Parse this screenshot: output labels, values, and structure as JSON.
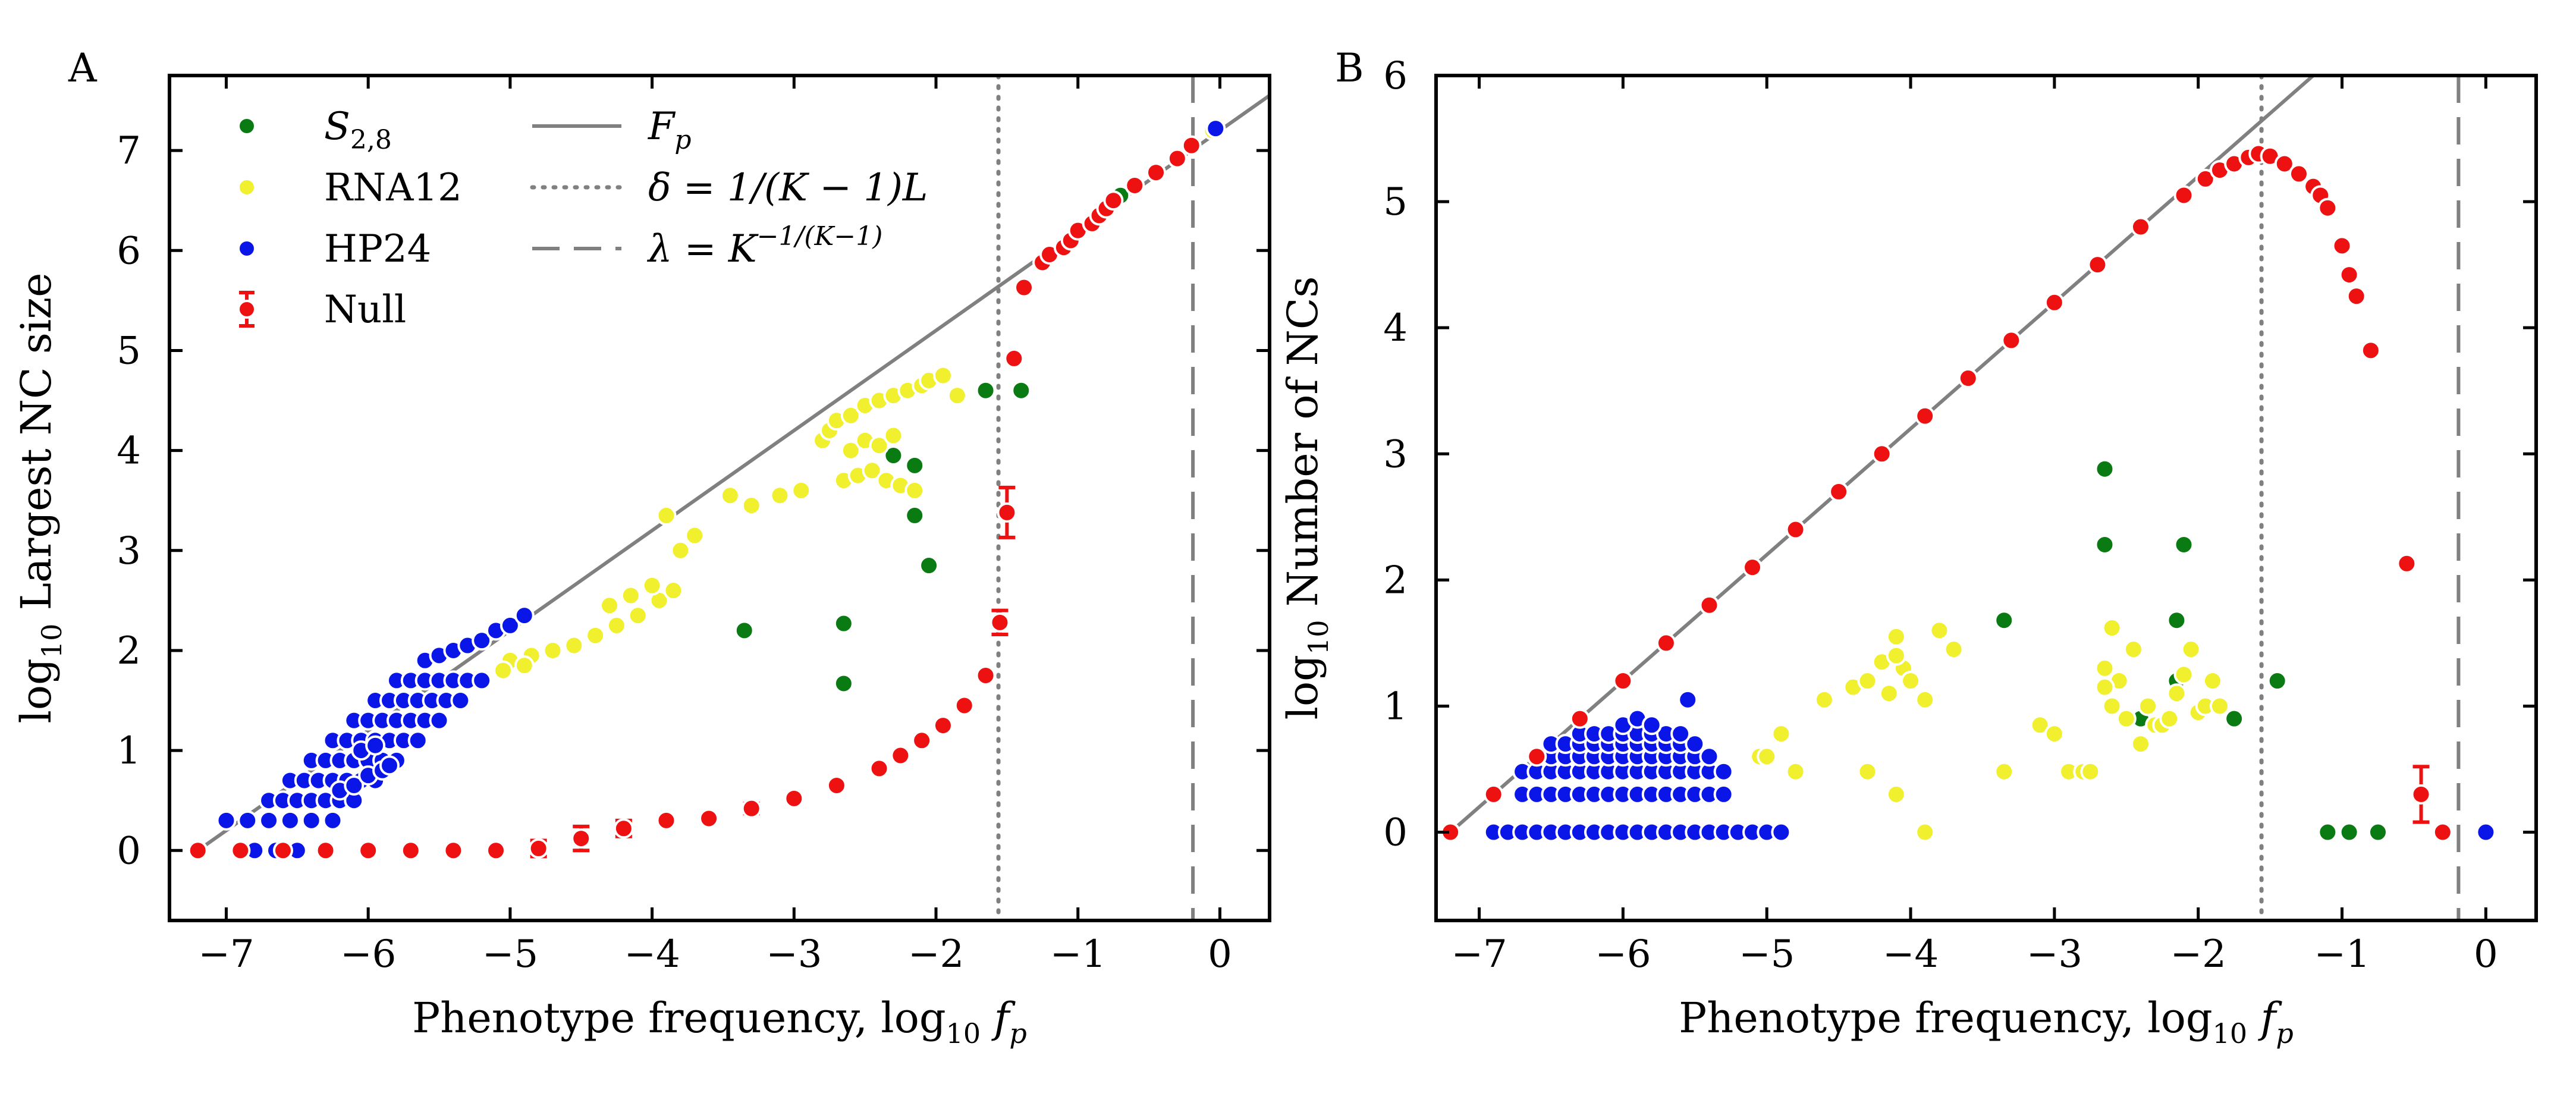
{
  "colors": {
    "s28": "#0a7a12",
    "rna12": "#f0f02e",
    "hp24": "#0a16e8",
    "null": "#ee1111",
    "line": "#808080",
    "axis": "#000000"
  },
  "chart_data": [
    {
      "panel_label": "A",
      "type": "scatter",
      "title": "",
      "xlabel": "Phenotype frequency, log10 fp",
      "ylabel": "log10 Largest NC size",
      "xlim": [
        -7.4,
        0.35
      ],
      "ylim": [
        -0.7,
        7.75
      ],
      "xticks": [
        -7,
        -6,
        -5,
        -4,
        -3,
        -2,
        -1,
        0
      ],
      "xtick_labels": [
        "−7",
        "−6",
        "−5",
        "−4",
        "−3",
        "−2",
        "−1",
        "0"
      ],
      "yticks": [
        0,
        1,
        2,
        3,
        4,
        5,
        6,
        7
      ],
      "ytick_labels": [
        "0",
        "1",
        "2",
        "3",
        "4",
        "5",
        "6",
        "7"
      ],
      "legend": {
        "placement": "top-left",
        "entries": [
          {
            "label": "S2,8",
            "marker": "dot",
            "color_key": "s28"
          },
          {
            "label": "RNA12",
            "marker": "dot",
            "color_key": "rna12"
          },
          {
            "label": "HP24",
            "marker": "dot",
            "color_key": "hp24"
          },
          {
            "label": "Null",
            "marker": "errorbar",
            "color_key": "null"
          },
          {
            "label": "Fp",
            "marker": "solid"
          },
          {
            "label": "δ = 1/(K − 1)L",
            "marker": "dotted"
          },
          {
            "label": "λ = K^(−1/(K−1))",
            "marker": "dashed"
          }
        ]
      },
      "reference_lines": {
        "Fp": {
          "x": [
            -7.2,
            0.35
          ],
          "y": [
            0,
            7.55
          ]
        },
        "delta_x": -1.56,
        "lambda_x": -0.19
      },
      "series": [
        {
          "name": "S2,8",
          "color_key": "s28",
          "x": [
            -0.7,
            -1.4,
            -1.65,
            -2.3,
            -2.15,
            -2.15,
            -2.05,
            -3.35,
            -2.65,
            -2.65
          ],
          "y": [
            6.55,
            4.6,
            4.6,
            3.95,
            3.85,
            3.35,
            2.85,
            2.2,
            2.27,
            1.67
          ]
        },
        {
          "name": "RNA12",
          "color_key": "rna12",
          "x": [
            -5.0,
            -4.85,
            -4.7,
            -4.55,
            -4.4,
            -4.25,
            -4.1,
            -3.95,
            -3.85,
            -4.0,
            -4.15,
            -4.3,
            -3.8,
            -3.7,
            -3.9,
            -3.45,
            -3.3,
            -3.1,
            -2.95,
            -2.8,
            -2.75,
            -2.7,
            -2.6,
            -2.5,
            -2.4,
            -2.3,
            -2.2,
            -2.1,
            -2.05,
            -1.95,
            -1.85,
            -2.65,
            -2.55,
            -2.45,
            -2.35,
            -2.25,
            -2.15,
            -2.6,
            -2.5,
            -2.4,
            -2.3,
            -4.9,
            -5.05,
            -0.05
          ],
          "y": [
            1.9,
            1.95,
            2.0,
            2.05,
            2.15,
            2.25,
            2.35,
            2.5,
            2.6,
            2.65,
            2.55,
            2.45,
            3.0,
            3.15,
            3.35,
            3.55,
            3.45,
            3.55,
            3.6,
            4.1,
            4.2,
            4.3,
            4.35,
            4.45,
            4.5,
            4.55,
            4.6,
            4.65,
            4.7,
            4.75,
            4.55,
            3.7,
            3.75,
            3.8,
            3.7,
            3.65,
            3.6,
            4.0,
            4.1,
            4.05,
            4.15,
            1.85,
            1.8,
            7.2
          ]
        },
        {
          "name": "HP24",
          "color_key": "hp24",
          "x": [
            -6.8,
            -6.65,
            -6.5,
            -7.0,
            -6.85,
            -6.7,
            -6.55,
            -6.4,
            -6.25,
            -6.7,
            -6.6,
            -6.5,
            -6.4,
            -6.3,
            -6.2,
            -6.1,
            -6.55,
            -6.45,
            -6.35,
            -6.25,
            -6.15,
            -6.05,
            -5.95,
            -6.4,
            -6.3,
            -6.2,
            -6.1,
            -6.0,
            -5.9,
            -5.8,
            -6.25,
            -6.15,
            -6.05,
            -5.95,
            -5.85,
            -5.75,
            -5.65,
            -6.1,
            -6.0,
            -5.9,
            -5.8,
            -5.7,
            -5.6,
            -5.5,
            -5.95,
            -5.85,
            -5.75,
            -5.65,
            -5.55,
            -5.45,
            -5.35,
            -5.8,
            -5.7,
            -5.6,
            -5.5,
            -5.4,
            -5.3,
            -5.2,
            -5.6,
            -5.5,
            -5.4,
            -5.3,
            -5.2,
            -5.1,
            -5.0,
            -4.9,
            -6.2,
            -6.1,
            -6.0,
            -5.9,
            -6.05,
            -5.95,
            -5.85,
            -0.03
          ],
          "y": [
            0.0,
            0.0,
            0.0,
            0.3,
            0.3,
            0.3,
            0.3,
            0.3,
            0.3,
            0.5,
            0.5,
            0.5,
            0.5,
            0.5,
            0.5,
            0.5,
            0.7,
            0.7,
            0.7,
            0.7,
            0.7,
            0.7,
            0.7,
            0.9,
            0.9,
            0.9,
            0.9,
            0.9,
            0.9,
            0.9,
            1.1,
            1.1,
            1.1,
            1.1,
            1.1,
            1.1,
            1.1,
            1.3,
            1.3,
            1.3,
            1.3,
            1.3,
            1.3,
            1.3,
            1.5,
            1.5,
            1.5,
            1.5,
            1.5,
            1.5,
            1.5,
            1.7,
            1.7,
            1.7,
            1.7,
            1.7,
            1.7,
            1.7,
            1.9,
            1.95,
            2.0,
            2.05,
            2.1,
            2.2,
            2.25,
            2.35,
            0.6,
            0.65,
            0.75,
            0.8,
            1.0,
            1.05,
            0.85,
            7.22
          ]
        },
        {
          "name": "Null",
          "color_key": "null",
          "x": [
            -7.2,
            -6.9,
            -6.6,
            -6.3,
            -6.0,
            -5.7,
            -5.4,
            -5.1,
            -4.8,
            -4.5,
            -4.2,
            -3.9,
            -3.6,
            -3.3,
            -3.0,
            -2.7,
            -2.4,
            -2.25,
            -2.1,
            -1.95,
            -1.8,
            -1.65,
            -1.55,
            -1.5,
            -1.45,
            -1.38,
            -1.25,
            -1.2,
            -1.1,
            -1.05,
            -1.0,
            -0.9,
            -0.85,
            -0.8,
            -0.75,
            -0.6,
            -0.45,
            -0.3,
            -0.2
          ],
          "y": [
            0.0,
            0.0,
            0.0,
            0.0,
            0.0,
            0.0,
            0.0,
            0.0,
            0.02,
            0.12,
            0.22,
            0.3,
            0.32,
            0.42,
            0.52,
            0.65,
            0.82,
            0.95,
            1.1,
            1.25,
            1.45,
            1.75,
            2.28,
            3.38,
            4.92,
            5.63,
            5.88,
            5.96,
            6.03,
            6.1,
            6.2,
            6.27,
            6.35,
            6.42,
            6.5,
            6.65,
            6.78,
            6.92,
            7.05
          ],
          "yerr": [
            0,
            0,
            0,
            0,
            0,
            0,
            0,
            0,
            0.08,
            0.12,
            0.08,
            0,
            0,
            0.05,
            0,
            0,
            0,
            0,
            0,
            0,
            0,
            0,
            0.12,
            0.25,
            0,
            0,
            0,
            0,
            0,
            0,
            0,
            0,
            0,
            0,
            0,
            0,
            0,
            0,
            0
          ]
        }
      ]
    },
    {
      "panel_label": "B",
      "type": "scatter",
      "title": "",
      "xlabel": "Phenotype frequency, log10 fp",
      "ylabel": "log10 Number of NCs",
      "xlim": [
        -7.3,
        0.35
      ],
      "ylim": [
        -0.7,
        6.0
      ],
      "xticks": [
        -7,
        -6,
        -5,
        -4,
        -3,
        -2,
        -1,
        0
      ],
      "xtick_labels": [
        "−7",
        "−6",
        "−5",
        "−4",
        "−3",
        "−2",
        "−1",
        "0"
      ],
      "yticks": [
        0,
        1,
        2,
        3,
        4,
        5,
        6
      ],
      "ytick_labels": [
        "0",
        "1",
        "2",
        "3",
        "4",
        "5",
        "6"
      ],
      "reference_lines": {
        "Fp": {
          "x": [
            -7.2,
            -1.0
          ],
          "y": [
            0,
            6.2
          ]
        },
        "delta_x": -1.56,
        "lambda_x": -0.19
      },
      "series": [
        {
          "name": "S2,8",
          "color_key": "s28",
          "x": [
            -2.65,
            -2.65,
            -2.1,
            -2.15,
            -3.35,
            -2.15,
            -1.45,
            -1.75,
            -2.4,
            -1.1,
            -0.95,
            -0.75
          ],
          "y": [
            2.88,
            2.28,
            2.28,
            1.68,
            1.68,
            1.2,
            1.2,
            0.9,
            0.9,
            0.0,
            0.0,
            0.0
          ],
          "yerr": []
        },
        {
          "name": "RNA12",
          "color_key": "rna12",
          "x": [
            -5.05,
            -5.0,
            -4.9,
            -4.8,
            -4.6,
            -4.4,
            -4.3,
            -4.2,
            -4.1,
            -4.05,
            -4.0,
            -4.1,
            -4.15,
            -3.8,
            -3.7,
            -3.9,
            -3.35,
            -3.1,
            -3.0,
            -2.9,
            -2.8,
            -2.75,
            -2.65,
            -2.6,
            -2.55,
            -2.45,
            -2.4,
            -2.35,
            -2.3,
            -2.25,
            -2.2,
            -2.15,
            -2.1,
            -2.05,
            -2.0,
            -1.95,
            -1.9,
            -1.85,
            -2.65,
            -2.6,
            -2.5,
            -3.35,
            -4.3,
            -4.1,
            -3.9
          ],
          "y": [
            0.6,
            0.6,
            0.78,
            0.48,
            1.05,
            1.15,
            1.2,
            1.35,
            1.55,
            1.3,
            1.2,
            1.4,
            1.1,
            1.6,
            1.45,
            1.05,
            0.48,
            0.85,
            0.78,
            0.48,
            0.48,
            0.48,
            1.3,
            1.62,
            1.2,
            1.45,
            0.7,
            1.0,
            0.85,
            0.85,
            0.9,
            1.1,
            1.25,
            1.45,
            0.95,
            1.0,
            1.2,
            1.0,
            1.15,
            1.0,
            0.9,
            0.48,
            0.48,
            0.3,
            0.0
          ],
          "yerr": []
        },
        {
          "name": "HP24",
          "color_key": "hp24",
          "x": [
            -6.9,
            -6.8,
            -6.7,
            -6.6,
            -6.5,
            -6.4,
            -6.3,
            -6.2,
            -6.1,
            -6.0,
            -5.9,
            -5.8,
            -5.7,
            -5.6,
            -5.5,
            -5.4,
            -5.3,
            -5.2,
            -5.1,
            -5.0,
            -4.9,
            -6.7,
            -6.6,
            -6.5,
            -6.4,
            -6.3,
            -6.2,
            -6.1,
            -6.0,
            -5.9,
            -5.8,
            -5.7,
            -5.6,
            -5.5,
            -5.4,
            -5.3,
            -6.7,
            -6.6,
            -6.5,
            -6.4,
            -6.3,
            -6.2,
            -6.1,
            -6.0,
            -5.9,
            -5.8,
            -5.7,
            -5.6,
            -5.5,
            -5.4,
            -5.3,
            -6.6,
            -6.5,
            -6.4,
            -6.3,
            -6.2,
            -6.1,
            -6.0,
            -5.9,
            -5.8,
            -5.7,
            -5.6,
            -5.5,
            -5.4,
            -6.5,
            -6.4,
            -6.3,
            -6.2,
            -6.1,
            -6.0,
            -5.9,
            -5.8,
            -5.7,
            -5.6,
            -5.5,
            -6.3,
            -6.2,
            -6.1,
            -6.0,
            -5.9,
            -5.8,
            -5.7,
            -5.6,
            -6.0,
            -5.9,
            -5.8,
            -5.55,
            0.0
          ],
          "y": [
            0.0,
            0.0,
            0.0,
            0.0,
            0.0,
            0.0,
            0.0,
            0.0,
            0.0,
            0.0,
            0.0,
            0.0,
            0.0,
            0.0,
            0.0,
            0.0,
            0.0,
            0.0,
            0.0,
            0.0,
            0.0,
            0.3,
            0.3,
            0.3,
            0.3,
            0.3,
            0.3,
            0.3,
            0.3,
            0.3,
            0.3,
            0.3,
            0.3,
            0.3,
            0.3,
            0.3,
            0.48,
            0.48,
            0.48,
            0.48,
            0.48,
            0.48,
            0.48,
            0.48,
            0.48,
            0.48,
            0.48,
            0.48,
            0.48,
            0.48,
            0.48,
            0.6,
            0.6,
            0.6,
            0.6,
            0.6,
            0.6,
            0.6,
            0.6,
            0.6,
            0.6,
            0.6,
            0.6,
            0.6,
            0.7,
            0.7,
            0.7,
            0.7,
            0.7,
            0.7,
            0.7,
            0.7,
            0.7,
            0.7,
            0.7,
            0.78,
            0.78,
            0.78,
            0.78,
            0.78,
            0.78,
            0.78,
            0.78,
            0.85,
            0.9,
            0.85,
            1.05,
            0.0
          ],
          "yerr": []
        },
        {
          "name": "Null",
          "color_key": "null",
          "x": [
            -7.2,
            -6.9,
            -6.6,
            -6.3,
            -6.0,
            -5.7,
            -5.4,
            -5.1,
            -4.8,
            -4.5,
            -4.2,
            -3.9,
            -3.6,
            -3.3,
            -3.0,
            -2.7,
            -2.4,
            -2.1,
            -1.95,
            -1.85,
            -1.75,
            -1.65,
            -1.58,
            -1.5,
            -1.4,
            -1.3,
            -1.2,
            -1.15,
            -1.1,
            -1.0,
            -0.95,
            -0.9,
            -0.8,
            -0.55,
            -0.45,
            -0.3
          ],
          "y": [
            0.0,
            0.3,
            0.6,
            0.9,
            1.2,
            1.5,
            1.8,
            2.1,
            2.4,
            2.7,
            3.0,
            3.3,
            3.6,
            3.9,
            4.2,
            4.5,
            4.8,
            5.05,
            5.18,
            5.25,
            5.3,
            5.35,
            5.38,
            5.36,
            5.3,
            5.22,
            5.12,
            5.05,
            4.95,
            4.65,
            4.42,
            4.25,
            3.82,
            2.13,
            0.3,
            0.0
          ],
          "yerr": [
            0,
            0,
            0,
            0,
            0,
            0,
            0,
            0,
            0,
            0,
            0,
            0,
            0,
            0,
            0,
            0,
            0,
            0,
            0,
            0,
            0,
            0,
            0,
            0,
            0,
            0,
            0,
            0,
            0,
            0,
            0,
            0,
            0,
            0,
            0.22,
            0
          ]
        }
      ]
    }
  ]
}
